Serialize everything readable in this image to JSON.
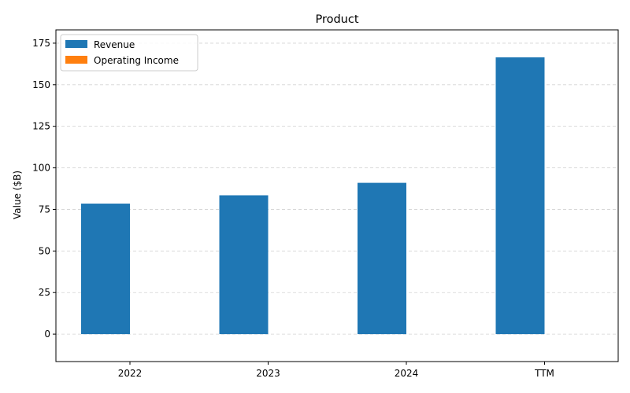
{
  "chart_data": {
    "type": "bar",
    "title": "Product",
    "xlabel": "",
    "ylabel": "Value ($B)",
    "categories": [
      "2022",
      "2023",
      "2024",
      "TTM"
    ],
    "series": [
      {
        "name": "Revenue",
        "values": [
          78.5,
          83.5,
          91.0,
          166.5
        ],
        "color": "#1f77b4"
      },
      {
        "name": "Operating Income",
        "values": [
          0,
          0,
          0,
          0
        ],
        "color": "#ff7f0e"
      }
    ],
    "ylim": [
      -16.5,
      183
    ],
    "yticks": [
      0,
      25,
      50,
      75,
      100,
      125,
      150,
      175
    ],
    "grid": "horizontal-dashed",
    "legend_position": "top-left"
  }
}
